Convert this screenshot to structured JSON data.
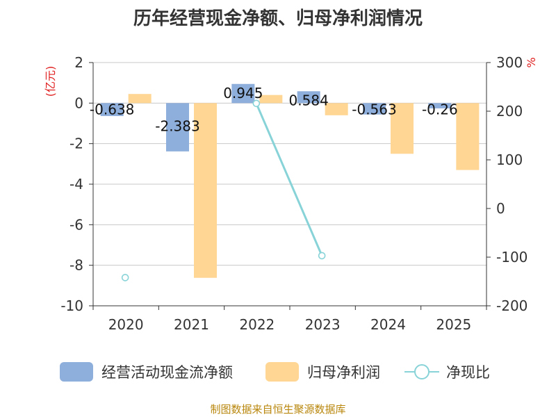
{
  "chart_data": {
    "type": "bar",
    "title": "历年经营现金净额、归母净利润情况",
    "categories": [
      "2020",
      "2021",
      "2022",
      "2023",
      "2024",
      "2025"
    ],
    "y_left": {
      "label": "(亿元)",
      "min": -10,
      "max": 2,
      "ticks": [
        2,
        0,
        -2,
        -4,
        -6,
        -8,
        -10
      ]
    },
    "y_right": {
      "label": "%",
      "min": -200,
      "max": 300,
      "ticks": [
        300,
        200,
        100,
        0,
        -100,
        -200
      ]
    },
    "series": [
      {
        "name": "经营活动现金流净额",
        "kind": "bar",
        "axis": "left",
        "color": "#8eaedb",
        "values": [
          -0.638,
          -2.383,
          0.945,
          0.584,
          -0.563,
          -0.26
        ],
        "labels": [
          "-0.638",
          "-2.383",
          "0.945",
          "0.584",
          "-0.563",
          "-0.26"
        ]
      },
      {
        "name": "归母净利润",
        "kind": "bar",
        "axis": "left",
        "color": "#ffd693",
        "values": [
          0.45,
          -8.62,
          0.4,
          -0.6,
          -2.5,
          -3.3
        ]
      },
      {
        "name": "净现比",
        "kind": "line",
        "axis": "right",
        "color": "#88d3d8",
        "values": [
          -142,
          null,
          216,
          -97,
          null,
          null
        ]
      }
    ],
    "source": "制图数据来自恒生聚源数据库"
  }
}
